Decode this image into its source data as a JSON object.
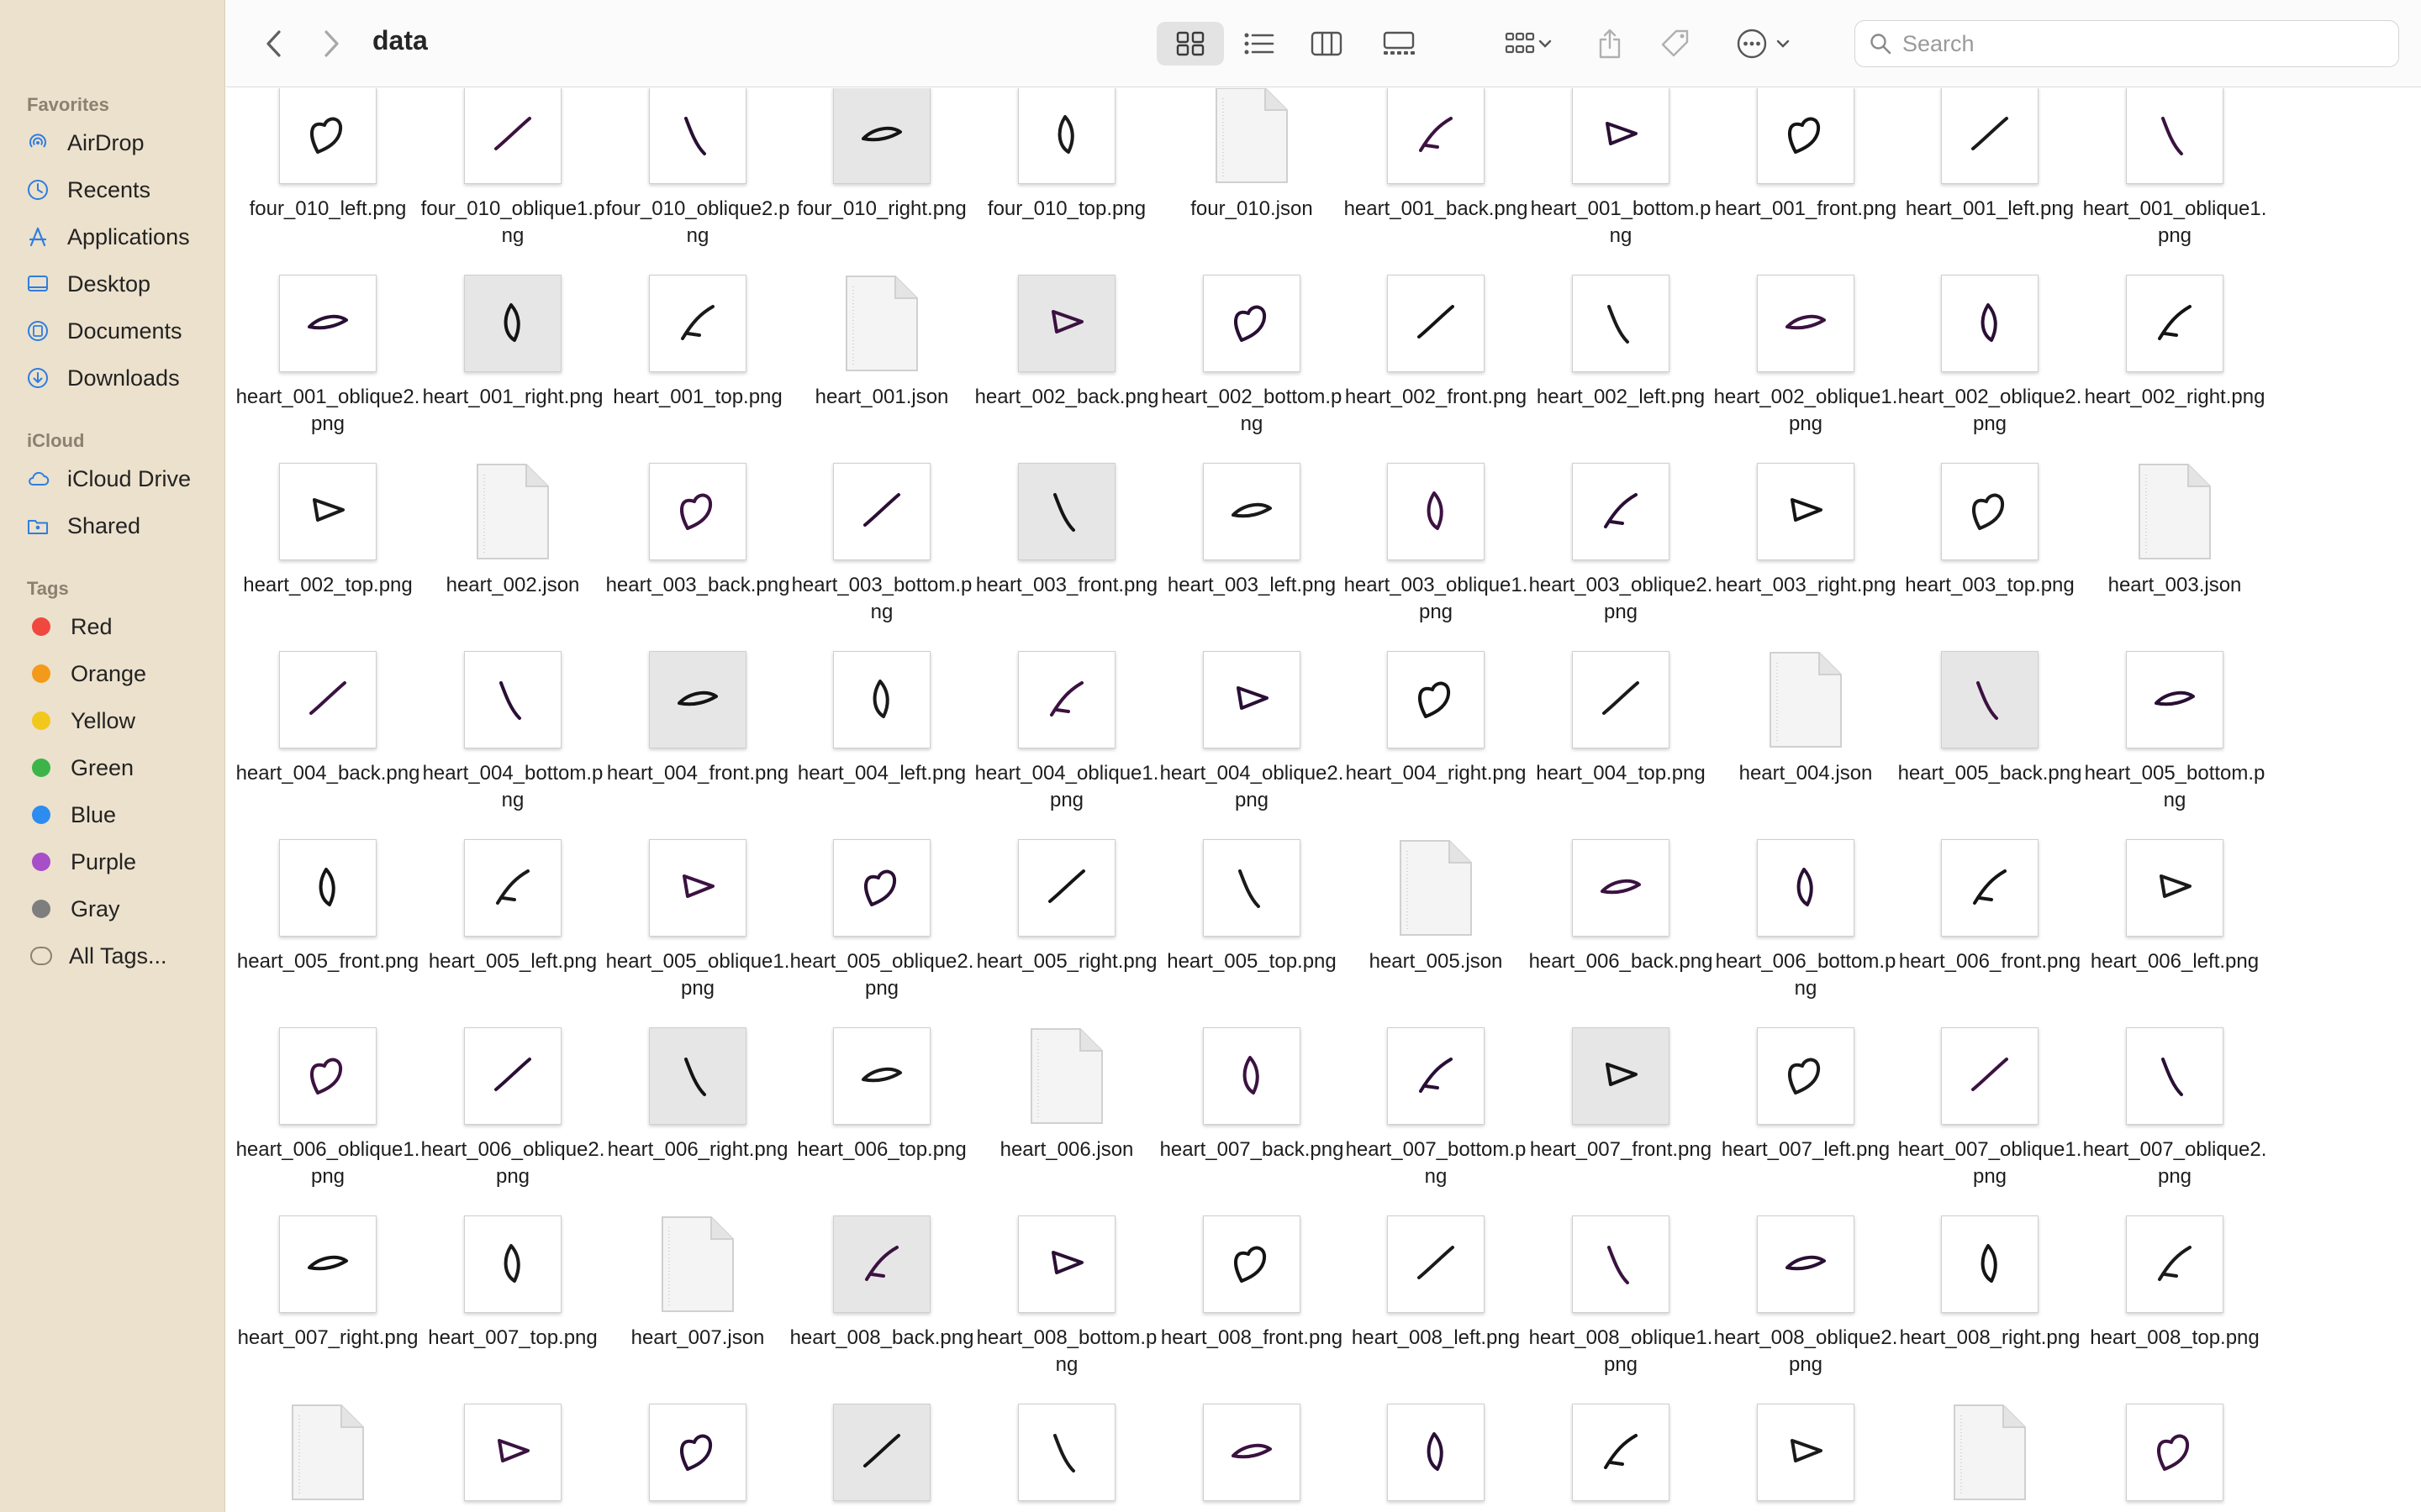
{
  "window": {
    "title": "data"
  },
  "toolbar": {
    "back_icon": "chevron-left-icon",
    "forward_icon": "chevron-right-icon",
    "view_modes": [
      "icon-view",
      "list-view",
      "column-view",
      "gallery-view"
    ],
    "active_view": "icon-view",
    "search_placeholder": "Search"
  },
  "sidebar": {
    "favorites_label": "Favorites",
    "favorites": [
      {
        "label": "AirDrop",
        "icon": "airdrop-icon"
      },
      {
        "label": "Recents",
        "icon": "clock-icon"
      },
      {
        "label": "Applications",
        "icon": "applications-icon"
      },
      {
        "label": "Desktop",
        "icon": "desktop-icon"
      },
      {
        "label": "Documents",
        "icon": "document-icon"
      },
      {
        "label": "Downloads",
        "icon": "download-icon"
      }
    ],
    "icloud_label": "iCloud",
    "icloud": [
      {
        "label": "iCloud Drive",
        "icon": "cloud-icon"
      },
      {
        "label": "Shared",
        "icon": "shared-folder-icon"
      }
    ],
    "tags_label": "Tags",
    "tags": [
      {
        "label": "Red",
        "color": "#f0473f"
      },
      {
        "label": "Orange",
        "color": "#f49a1b"
      },
      {
        "label": "Yellow",
        "color": "#f2c81d"
      },
      {
        "label": "Green",
        "color": "#3cb44a"
      },
      {
        "label": "Blue",
        "color": "#2d8cf0"
      },
      {
        "label": "Purple",
        "color": "#a64fc8"
      },
      {
        "label": "Gray",
        "color": "#7e7e7e"
      },
      {
        "label": "All Tags...",
        "color": ""
      }
    ]
  },
  "files": [
    {
      "name": "four_010_left.png",
      "kind": "image"
    },
    {
      "name": "four_010_oblique1.png",
      "kind": "image"
    },
    {
      "name": "four_010_oblique2.png",
      "kind": "image"
    },
    {
      "name": "four_010_right.png",
      "kind": "image",
      "shaded": true
    },
    {
      "name": "four_010_top.png",
      "kind": "image"
    },
    {
      "name": "four_010.json",
      "kind": "json"
    },
    {
      "name": "heart_001_back.png",
      "kind": "image"
    },
    {
      "name": "heart_001_bottom.png",
      "kind": "image"
    },
    {
      "name": "heart_001_front.png",
      "kind": "image"
    },
    {
      "name": "heart_001_left.png",
      "kind": "image"
    },
    {
      "name": "heart_001_oblique1.png",
      "kind": "image"
    },
    {
      "name": "heart_001_oblique2.png",
      "kind": "image"
    },
    {
      "name": "heart_001_right.png",
      "kind": "image",
      "shaded": true
    },
    {
      "name": "heart_001_top.png",
      "kind": "image"
    },
    {
      "name": "heart_001.json",
      "kind": "json"
    },
    {
      "name": "heart_002_back.png",
      "kind": "image",
      "shaded": true
    },
    {
      "name": "heart_002_bottom.png",
      "kind": "image"
    },
    {
      "name": "heart_002_front.png",
      "kind": "image"
    },
    {
      "name": "heart_002_left.png",
      "kind": "image"
    },
    {
      "name": "heart_002_oblique1.png",
      "kind": "image"
    },
    {
      "name": "heart_002_oblique2.png",
      "kind": "image"
    },
    {
      "name": "heart_002_right.png",
      "kind": "image"
    },
    {
      "name": "heart_002_top.png",
      "kind": "image"
    },
    {
      "name": "heart_002.json",
      "kind": "json"
    },
    {
      "name": "heart_003_back.png",
      "kind": "image"
    },
    {
      "name": "heart_003_bottom.png",
      "kind": "image"
    },
    {
      "name": "heart_003_front.png",
      "kind": "image",
      "shaded": true
    },
    {
      "name": "heart_003_left.png",
      "kind": "image"
    },
    {
      "name": "heart_003_oblique1.png",
      "kind": "image"
    },
    {
      "name": "heart_003_oblique2.png",
      "kind": "image"
    },
    {
      "name": "heart_003_right.png",
      "kind": "image"
    },
    {
      "name": "heart_003_top.png",
      "kind": "image"
    },
    {
      "name": "heart_003.json",
      "kind": "json"
    },
    {
      "name": "heart_004_back.png",
      "kind": "image"
    },
    {
      "name": "heart_004_bottom.png",
      "kind": "image"
    },
    {
      "name": "heart_004_front.png",
      "kind": "image",
      "shaded": true
    },
    {
      "name": "heart_004_left.png",
      "kind": "image"
    },
    {
      "name": "heart_004_oblique1.png",
      "kind": "image"
    },
    {
      "name": "heart_004_oblique2.png",
      "kind": "image"
    },
    {
      "name": "heart_004_right.png",
      "kind": "image"
    },
    {
      "name": "heart_004_top.png",
      "kind": "image"
    },
    {
      "name": "heart_004.json",
      "kind": "json"
    },
    {
      "name": "heart_005_back.png",
      "kind": "image",
      "shaded": true
    },
    {
      "name": "heart_005_bottom.png",
      "kind": "image"
    },
    {
      "name": "heart_005_front.png",
      "kind": "image"
    },
    {
      "name": "heart_005_left.png",
      "kind": "image"
    },
    {
      "name": "heart_005_oblique1.png",
      "kind": "image"
    },
    {
      "name": "heart_005_oblique2.png",
      "kind": "image"
    },
    {
      "name": "heart_005_right.png",
      "kind": "image"
    },
    {
      "name": "heart_005_top.png",
      "kind": "image"
    },
    {
      "name": "heart_005.json",
      "kind": "json"
    },
    {
      "name": "heart_006_back.png",
      "kind": "image"
    },
    {
      "name": "heart_006_bottom.png",
      "kind": "image"
    },
    {
      "name": "heart_006_front.png",
      "kind": "image"
    },
    {
      "name": "heart_006_left.png",
      "kind": "image"
    },
    {
      "name": "heart_006_oblique1.png",
      "kind": "image"
    },
    {
      "name": "heart_006_oblique2.png",
      "kind": "image"
    },
    {
      "name": "heart_006_right.png",
      "kind": "image",
      "shaded": true
    },
    {
      "name": "heart_006_top.png",
      "kind": "image"
    },
    {
      "name": "heart_006.json",
      "kind": "json"
    },
    {
      "name": "heart_007_back.png",
      "kind": "image"
    },
    {
      "name": "heart_007_bottom.png",
      "kind": "image"
    },
    {
      "name": "heart_007_front.png",
      "kind": "image",
      "shaded": true
    },
    {
      "name": "heart_007_left.png",
      "kind": "image"
    },
    {
      "name": "heart_007_oblique1.png",
      "kind": "image"
    },
    {
      "name": "heart_007_oblique2.png",
      "kind": "image"
    },
    {
      "name": "heart_007_right.png",
      "kind": "image"
    },
    {
      "name": "heart_007_top.png",
      "kind": "image"
    },
    {
      "name": "heart_007.json",
      "kind": "json"
    },
    {
      "name": "heart_008_back.png",
      "kind": "image",
      "shaded": true
    },
    {
      "name": "heart_008_bottom.png",
      "kind": "image"
    },
    {
      "name": "heart_008_front.png",
      "kind": "image"
    },
    {
      "name": "heart_008_left.png",
      "kind": "image"
    },
    {
      "name": "heart_008_oblique1.png",
      "kind": "image"
    },
    {
      "name": "heart_008_oblique2.png",
      "kind": "image"
    },
    {
      "name": "heart_008_right.png",
      "kind": "image"
    },
    {
      "name": "heart_008_top.png",
      "kind": "image"
    },
    {
      "name": "",
      "kind": "json"
    },
    {
      "name": "",
      "kind": "image"
    },
    {
      "name": "",
      "kind": "image"
    },
    {
      "name": "",
      "kind": "image",
      "shaded": true
    },
    {
      "name": "",
      "kind": "image"
    },
    {
      "name": "",
      "kind": "image"
    },
    {
      "name": "",
      "kind": "image"
    },
    {
      "name": "",
      "kind": "image"
    },
    {
      "name": "",
      "kind": "image"
    },
    {
      "name": "",
      "kind": "json"
    },
    {
      "name": "",
      "kind": "image"
    }
  ]
}
